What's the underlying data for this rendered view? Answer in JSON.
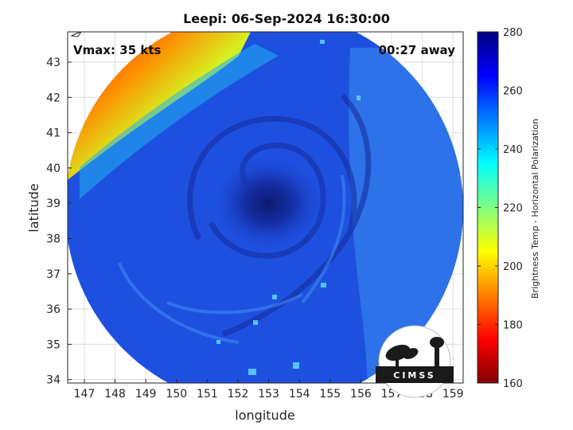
{
  "title": "Leepi: 06-Sep-2024 16:30:00",
  "overlay": {
    "vmax": "Vmax: 35 kts",
    "time_away": "00:27 away"
  },
  "map": {
    "xlabel": "longitude",
    "ylabel": "latitude",
    "lon_ticks": [
      "147",
      "148",
      "149",
      "150",
      "151",
      "152",
      "153",
      "154",
      "155",
      "156",
      "157",
      "158",
      "159"
    ],
    "lat_ticks": [
      "43",
      "42",
      "41",
      "40",
      "39",
      "38",
      "37",
      "36",
      "35",
      "34"
    ],
    "storm_center": {
      "lon": 153.0,
      "lat": 38.9
    }
  },
  "colorbar": {
    "label": "Brightness Temp - Horizontal Polarization",
    "ticks": [
      "280",
      "260",
      "240",
      "220",
      "200",
      "180",
      "160"
    ],
    "colormap": "jet"
  },
  "logo": {
    "text": "CIMSS"
  }
}
